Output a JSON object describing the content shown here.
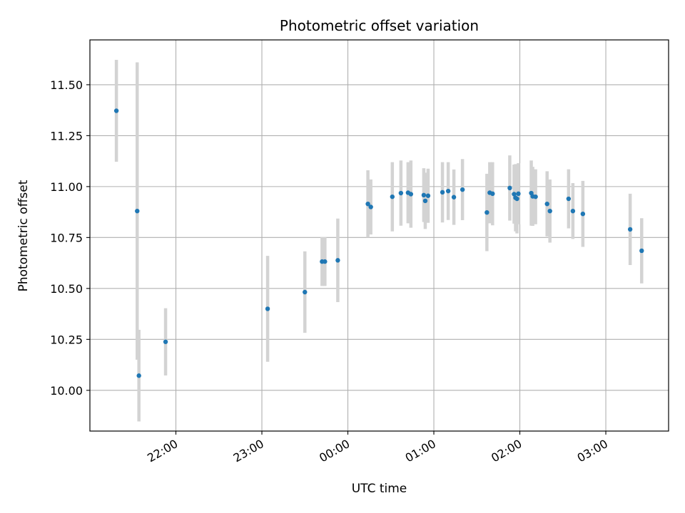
{
  "chart_data": {
    "type": "scatter",
    "title": "Photometric offset variation",
    "xlabel": "UTC time",
    "ylabel": "Photometric offset",
    "x_unit": "hours of UTC day (values ≥ 24 are after 00:00 on the next day)",
    "xlim": [
      21.0,
      27.73
    ],
    "ylim": [
      9.8,
      11.72
    ],
    "grid": true,
    "x_ticks": [
      {
        "value": 22,
        "label": "22:00"
      },
      {
        "value": 23,
        "label": "23:00"
      },
      {
        "value": 24,
        "label": "00:00"
      },
      {
        "value": 25,
        "label": "01:00"
      },
      {
        "value": 26,
        "label": "02:00"
      },
      {
        "value": 27,
        "label": "03:00"
      }
    ],
    "y_ticks": [
      {
        "value": 10.0,
        "label": "10.00"
      },
      {
        "value": 10.25,
        "label": "10.25"
      },
      {
        "value": 10.5,
        "label": "10.50"
      },
      {
        "value": 10.75,
        "label": "10.75"
      },
      {
        "value": 11.0,
        "label": "11.00"
      },
      {
        "value": 11.25,
        "label": "11.25"
      },
      {
        "value": 11.5,
        "label": "11.50"
      }
    ],
    "colors": {
      "point": "#1f77b4",
      "errorbar": "#d3d3d3",
      "grid": "#b0b0b0"
    },
    "points": [
      {
        "x": 21.308,
        "y": 11.372,
        "err": 0.25
      },
      {
        "x": 21.55,
        "y": 10.88,
        "err": 0.73
      },
      {
        "x": 21.57,
        "y": 10.072,
        "err": 0.225
      },
      {
        "x": 21.88,
        "y": 10.238,
        "err": 0.165
      },
      {
        "x": 23.067,
        "y": 10.4,
        "err": 0.26
      },
      {
        "x": 23.5,
        "y": 10.482,
        "err": 0.2
      },
      {
        "x": 23.7,
        "y": 10.632,
        "err": 0.12
      },
      {
        "x": 23.733,
        "y": 10.632,
        "err": 0.12
      },
      {
        "x": 23.883,
        "y": 10.638,
        "err": 0.205
      },
      {
        "x": 24.233,
        "y": 10.915,
        "err": 0.165
      },
      {
        "x": 24.267,
        "y": 10.9,
        "err": 0.135
      },
      {
        "x": 24.517,
        "y": 10.95,
        "err": 0.17
      },
      {
        "x": 24.617,
        "y": 10.968,
        "err": 0.16
      },
      {
        "x": 24.7,
        "y": 10.97,
        "err": 0.15
      },
      {
        "x": 24.733,
        "y": 10.963,
        "err": 0.165
      },
      {
        "x": 24.883,
        "y": 10.958,
        "err": 0.132
      },
      {
        "x": 24.9,
        "y": 10.93,
        "err": 0.138
      },
      {
        "x": 24.933,
        "y": 10.955,
        "err": 0.133
      },
      {
        "x": 25.1,
        "y": 10.972,
        "err": 0.148
      },
      {
        "x": 25.167,
        "y": 10.978,
        "err": 0.142
      },
      {
        "x": 25.233,
        "y": 10.948,
        "err": 0.136
      },
      {
        "x": 25.333,
        "y": 10.985,
        "err": 0.15
      },
      {
        "x": 25.617,
        "y": 10.873,
        "err": 0.19
      },
      {
        "x": 25.65,
        "y": 10.97,
        "err": 0.15
      },
      {
        "x": 25.683,
        "y": 10.965,
        "err": 0.155
      },
      {
        "x": 25.883,
        "y": 10.993,
        "err": 0.16
      },
      {
        "x": 25.933,
        "y": 10.963,
        "err": 0.145
      },
      {
        "x": 25.95,
        "y": 10.945,
        "err": 0.165
      },
      {
        "x": 25.967,
        "y": 10.94,
        "err": 0.17
      },
      {
        "x": 25.983,
        "y": 10.965,
        "err": 0.15
      },
      {
        "x": 26.133,
        "y": 10.968,
        "err": 0.16
      },
      {
        "x": 26.15,
        "y": 10.952,
        "err": 0.145
      },
      {
        "x": 26.183,
        "y": 10.95,
        "err": 0.135
      },
      {
        "x": 26.317,
        "y": 10.915,
        "err": 0.16
      },
      {
        "x": 26.35,
        "y": 10.88,
        "err": 0.155
      },
      {
        "x": 26.567,
        "y": 10.94,
        "err": 0.145
      },
      {
        "x": 26.617,
        "y": 10.88,
        "err": 0.137
      },
      {
        "x": 26.733,
        "y": 10.866,
        "err": 0.162
      },
      {
        "x": 27.283,
        "y": 10.79,
        "err": 0.175
      },
      {
        "x": 27.417,
        "y": 10.685,
        "err": 0.16
      }
    ]
  }
}
